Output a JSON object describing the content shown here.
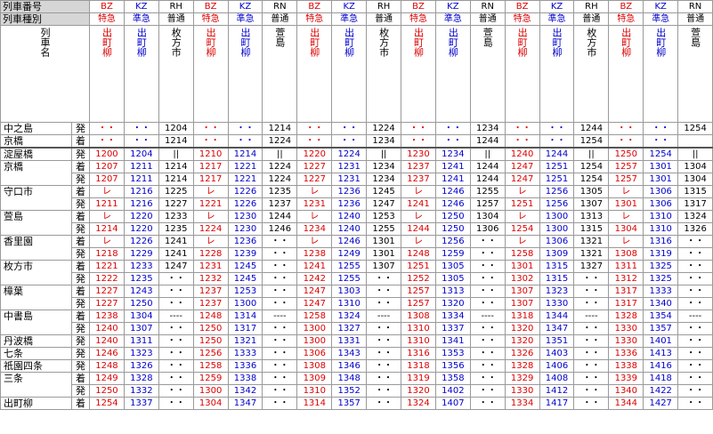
{
  "header": {
    "train_number_label": "列車番号",
    "train_type_label": "列車種別",
    "train_name_label": "列車名"
  },
  "trains": [
    {
      "code": "BZ",
      "type": "特急",
      "destination": "出町柳",
      "color": "#dd0000"
    },
    {
      "code": "KZ",
      "type": "準急",
      "destination": "出町柳",
      "color": "#0000cc"
    },
    {
      "code": "RH",
      "type": "普通",
      "destination": "枚方市",
      "color": "#000000"
    },
    {
      "code": "BZ",
      "type": "特急",
      "destination": "出町柳",
      "color": "#dd0000"
    },
    {
      "code": "KZ",
      "type": "準急",
      "destination": "出町柳",
      "color": "#0000cc"
    },
    {
      "code": "RN",
      "type": "普通",
      "destination": "萱島",
      "color": "#000000"
    },
    {
      "code": "BZ",
      "type": "特急",
      "destination": "出町柳",
      "color": "#dd0000"
    },
    {
      "code": "KZ",
      "type": "準急",
      "destination": "出町柳",
      "color": "#0000cc"
    },
    {
      "code": "RH",
      "type": "普通",
      "destination": "枚方市",
      "color": "#000000"
    },
    {
      "code": "BZ",
      "type": "特急",
      "destination": "出町柳",
      "color": "#dd0000"
    },
    {
      "code": "KZ",
      "type": "準急",
      "destination": "出町柳",
      "color": "#0000cc"
    },
    {
      "code": "RN",
      "type": "普通",
      "destination": "萱島",
      "color": "#000000"
    },
    {
      "code": "BZ",
      "type": "特急",
      "destination": "出町柳",
      "color": "#dd0000"
    },
    {
      "code": "KZ",
      "type": "準急",
      "destination": "出町柳",
      "color": "#0000cc"
    },
    {
      "code": "RH",
      "type": "普通",
      "destination": "枚方市",
      "color": "#000000"
    },
    {
      "code": "BZ",
      "type": "特急",
      "destination": "出町柳",
      "color": "#dd0000"
    },
    {
      "code": "KZ",
      "type": "準急",
      "destination": "出町柳",
      "color": "#0000cc"
    },
    {
      "code": "RN",
      "type": "普通",
      "destination": "萱島",
      "color": "#000000"
    }
  ],
  "stations": [
    {
      "name": "中之島",
      "rows": [
        {
          "mark": "発",
          "times": [
            "・・",
            "・・",
            "1204",
            "・・",
            "・・",
            "1214",
            "・・",
            "・・",
            "1224",
            "・・",
            "・・",
            "1234",
            "・・",
            "・・",
            "1244",
            "・・",
            "・・",
            "1254"
          ]
        }
      ]
    },
    {
      "name": "京橋",
      "rows": [
        {
          "mark": "着",
          "times": [
            "・・",
            "・・",
            "1214",
            "・・",
            "・・",
            "1224",
            "・・",
            "・・",
            "1234",
            "・・",
            "・・",
            "1244",
            "・・",
            "・・",
            "1254",
            "・・",
            "・・",
            null
          ]
        }
      ]
    },
    {
      "name": "淀屋橋",
      "rows": [
        {
          "mark": "発",
          "times": [
            "1200",
            "1204",
            "||",
            "1210",
            "1214",
            "||",
            "1220",
            "1224",
            "||",
            "1230",
            "1234",
            "||",
            "1240",
            "1244",
            "||",
            "1250",
            "1254",
            "||"
          ]
        }
      ]
    },
    {
      "name": "京橋",
      "rows": [
        {
          "mark": "着",
          "times": [
            "1207",
            "1211",
            "1214",
            "1217",
            "1221",
            "1224",
            "1227",
            "1231",
            "1234",
            "1237",
            "1241",
            "1244",
            "1247",
            "1251",
            "1254",
            "1257",
            "1301",
            "1304"
          ]
        },
        {
          "mark": "発",
          "times": [
            "1207",
            "1211",
            "1214",
            "1217",
            "1221",
            "1224",
            "1227",
            "1231",
            "1234",
            "1237",
            "1241",
            "1244",
            "1247",
            "1251",
            "1254",
            "1257",
            "1301",
            "1304"
          ]
        }
      ]
    },
    {
      "name": "守口市",
      "rows": [
        {
          "mark": "着",
          "times": [
            "レ",
            "1216",
            "1225",
            "レ",
            "1226",
            "1235",
            "レ",
            "1236",
            "1245",
            "レ",
            "1246",
            "1255",
            "レ",
            "1256",
            "1305",
            "レ",
            "1306",
            "1315"
          ]
        },
        {
          "mark": "発",
          "times": [
            "1211",
            "1216",
            "1227",
            "1221",
            "1226",
            "1237",
            "1231",
            "1236",
            "1247",
            "1241",
            "1246",
            "1257",
            "1251",
            "1256",
            "1307",
            "1301",
            "1306",
            "1317"
          ]
        }
      ]
    },
    {
      "name": "萱島",
      "rows": [
        {
          "mark": "着",
          "times": [
            "レ",
            "1220",
            "1233",
            "レ",
            "1230",
            "1244",
            "レ",
            "1240",
            "1253",
            "レ",
            "1250",
            "1304",
            "レ",
            "1300",
            "1313",
            "レ",
            "1310",
            "1324"
          ]
        },
        {
          "mark": "発",
          "times": [
            "1214",
            "1220",
            "1235",
            "1224",
            "1230",
            "1246",
            "1234",
            "1240",
            "1255",
            "1244",
            "1250",
            "1306",
            "1254",
            "1300",
            "1315",
            "1304",
            "1310",
            "1326"
          ]
        }
      ]
    },
    {
      "name": "香里園",
      "rows": [
        {
          "mark": "着",
          "times": [
            "レ",
            "1226",
            "1241",
            "レ",
            "1236",
            "・・",
            "レ",
            "1246",
            "1301",
            "レ",
            "1256",
            "・・",
            "レ",
            "1306",
            "1321",
            "レ",
            "1316",
            "・・"
          ]
        },
        {
          "mark": "発",
          "times": [
            "1218",
            "1229",
            "1241",
            "1228",
            "1239",
            "・・",
            "1238",
            "1249",
            "1301",
            "1248",
            "1259",
            "・・",
            "1258",
            "1309",
            "1321",
            "1308",
            "1319",
            "・・"
          ]
        }
      ]
    },
    {
      "name": "枚方市",
      "rows": [
        {
          "mark": "着",
          "times": [
            "1221",
            "1233",
            "1247",
            "1231",
            "1245",
            "・・",
            "1241",
            "1255",
            "1307",
            "1251",
            "1305",
            "・・",
            "1301",
            "1315",
            "1327",
            "1311",
            "1325",
            "・・"
          ]
        },
        {
          "mark": "発",
          "times": [
            "1222",
            "1235",
            "・・",
            "1232",
            "1245",
            "・・",
            "1242",
            "1255",
            "・・",
            "1252",
            "1305",
            "・・",
            "1302",
            "1315",
            "・・",
            "1312",
            "1325",
            "・・"
          ]
        }
      ]
    },
    {
      "name": "樟葉",
      "rows": [
        {
          "mark": "着",
          "times": [
            "1227",
            "1243",
            "・・",
            "1237",
            "1253",
            "・・",
            "1247",
            "1303",
            "・・",
            "1257",
            "1313",
            "・・",
            "1307",
            "1323",
            "・・",
            "1317",
            "1333",
            "・・"
          ]
        },
        {
          "mark": "発",
          "times": [
            "1227",
            "1250",
            "・・",
            "1237",
            "1300",
            "・・",
            "1247",
            "1310",
            "・・",
            "1257",
            "1320",
            "・・",
            "1307",
            "1330",
            "・・",
            "1317",
            "1340",
            "・・"
          ]
        }
      ]
    },
    {
      "name": "中書島",
      "rows": [
        {
          "mark": "着",
          "times": [
            "1238",
            "1304",
            "----",
            "1248",
            "1314",
            "----",
            "1258",
            "1324",
            "----",
            "1308",
            "1334",
            "----",
            "1318",
            "1344",
            "----",
            "1328",
            "1354",
            "----"
          ]
        },
        {
          "mark": "発",
          "times": [
            "1240",
            "1307",
            "・・",
            "1250",
            "1317",
            "・・",
            "1300",
            "1327",
            "・・",
            "1310",
            "1337",
            "・・",
            "1320",
            "1347",
            "・・",
            "1330",
            "1357",
            "・・"
          ]
        }
      ]
    },
    {
      "name": "丹波橋",
      "rows": [
        {
          "mark": "発",
          "times": [
            "1240",
            "1311",
            "・・",
            "1250",
            "1321",
            "・・",
            "1300",
            "1331",
            "・・",
            "1310",
            "1341",
            "・・",
            "1320",
            "1351",
            "・・",
            "1330",
            "1401",
            "・・"
          ]
        }
      ]
    },
    {
      "name": "七条",
      "rows": [
        {
          "mark": "発",
          "times": [
            "1246",
            "1323",
            "・・",
            "1256",
            "1333",
            "・・",
            "1306",
            "1343",
            "・・",
            "1316",
            "1353",
            "・・",
            "1326",
            "1403",
            "・・",
            "1336",
            "1413",
            "・・"
          ]
        }
      ]
    },
    {
      "name": "祇園四条",
      "rows": [
        {
          "mark": "発",
          "times": [
            "1248",
            "1326",
            "・・",
            "1258",
            "1336",
            "・・",
            "1308",
            "1346",
            "・・",
            "1318",
            "1356",
            "・・",
            "1328",
            "1406",
            "・・",
            "1338",
            "1416",
            "・・"
          ]
        }
      ]
    },
    {
      "name": "三条",
      "rows": [
        {
          "mark": "着",
          "times": [
            "1249",
            "1328",
            "・・",
            "1259",
            "1338",
            "・・",
            "1309",
            "1348",
            "・・",
            "1319",
            "1358",
            "・・",
            "1329",
            "1408",
            "・・",
            "1339",
            "1418",
            "・・"
          ]
        },
        {
          "mark": "発",
          "times": [
            "1250",
            "1332",
            "・・",
            "1300",
            "1342",
            "・・",
            "1310",
            "1352",
            "・・",
            "1320",
            "1402",
            "・・",
            "1330",
            "1412",
            "・・",
            "1340",
            "1422",
            "・・"
          ]
        }
      ]
    },
    {
      "name": "出町柳",
      "rows": [
        {
          "mark": "着",
          "times": [
            "1254",
            "1337",
            "・・",
            "1304",
            "1347",
            "・・",
            "1314",
            "1357",
            "・・",
            "1324",
            "1407",
            "・・",
            "1334",
            "1417",
            "・・",
            "1344",
            "1427",
            "・・"
          ]
        }
      ]
    }
  ]
}
